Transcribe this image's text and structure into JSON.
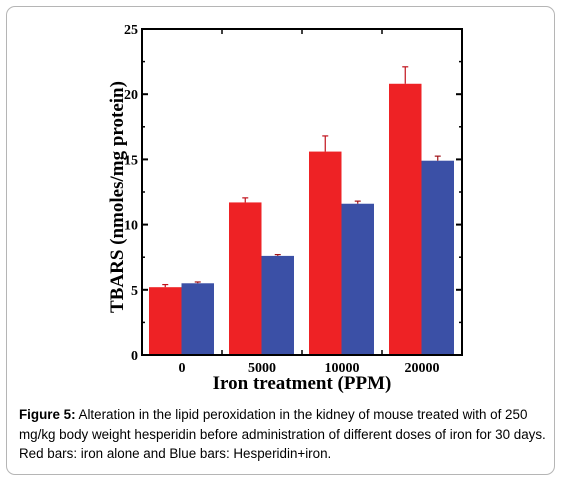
{
  "chart_data": {
    "type": "bar",
    "categories": [
      "0",
      "5000",
      "10000",
      "20000"
    ],
    "series": [
      {
        "values": [
          5.2,
          11.7,
          15.6,
          20.8
        ],
        "errors": [
          0.2,
          0.35,
          1.2,
          1.3
        ],
        "color": "#ee2225"
      },
      {
        "values": [
          5.5,
          7.6,
          11.6,
          14.9
        ],
        "errors": [
          0.1,
          0.1,
          0.2,
          0.35
        ],
        "color": "#3b50a6"
      }
    ],
    "title": "",
    "xlabel": "Iron treatment (PPM)",
    "ylabel": "TBARS (nmoles/mg protein)",
    "ylim": [
      0,
      25
    ],
    "yticks": [
      "0",
      "5",
      "10",
      "15",
      "20",
      "25"
    ],
    "grid": false
  },
  "caption": {
    "label": "Figure 5:",
    "text": " Alteration in the lipid peroxidation in the kidney of mouse treated with of 250 mg/kg body weight hesperidin before administration of different doses of iron for 30 days. Red bars: iron alone and Blue bars: Hesperidin+iron."
  }
}
